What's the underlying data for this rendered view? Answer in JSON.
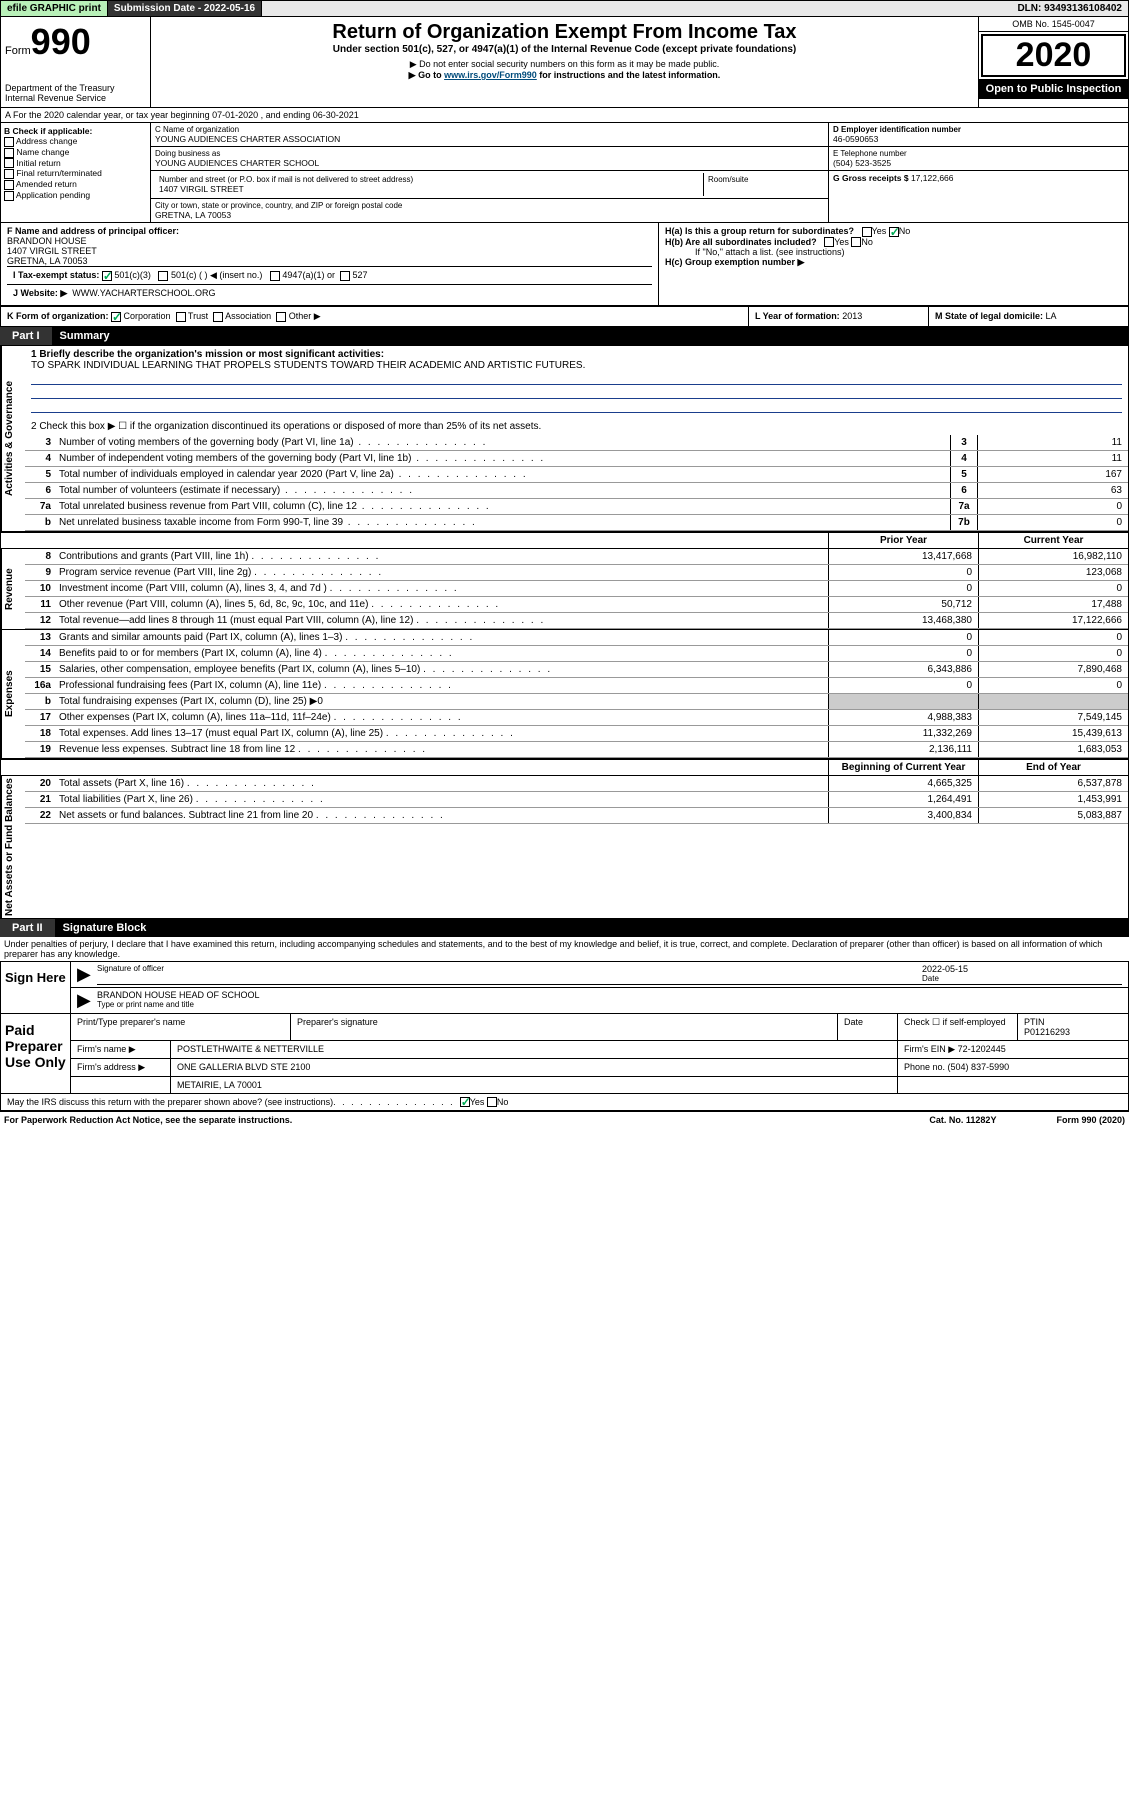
{
  "topbar": {
    "efile": "efile GRAPHIC print",
    "subdate_label": "Submission Date - ",
    "subdate": "2022-05-16",
    "dln_label": "DLN: ",
    "dln": "93493136108402"
  },
  "header": {
    "form_label": "Form",
    "form_num": "990",
    "dept": "Department of the Treasury\nInternal Revenue Service",
    "title": "Return of Organization Exempt From Income Tax",
    "subtitle": "Under section 501(c), 527, or 4947(a)(1) of the Internal Revenue Code (except private foundations)",
    "note1": "▶ Do not enter social security numbers on this form as it may be made public.",
    "note2_pre": "▶ Go to ",
    "note2_link": "www.irs.gov/Form990",
    "note2_post": " for instructions and the latest information.",
    "omb": "OMB No. 1545-0047",
    "year": "2020",
    "open": "Open to Public Inspection"
  },
  "row_a": {
    "text": "A For the 2020 calendar year, or tax year beginning 07-01-2020   , and ending 06-30-2021"
  },
  "col_b": {
    "label": "B Check if applicable:",
    "addr_change": "Address change",
    "name_change": "Name change",
    "initial": "Initial return",
    "final": "Final return/terminated",
    "amended": "Amended return",
    "app_pending": "Application pending"
  },
  "col_c": {
    "name_label": "C Name of organization",
    "name": "YOUNG AUDIENCES CHARTER ASSOCIATION",
    "dba_label": "Doing business as",
    "dba": "YOUNG AUDIENCES CHARTER SCHOOL",
    "addr_label": "Number and street (or P.O. box if mail is not delivered to street address)",
    "room_label": "Room/suite",
    "addr": "1407 VIRGIL STREET",
    "city_label": "City or town, state or province, country, and ZIP or foreign postal code",
    "city": "GRETNA, LA  70053"
  },
  "col_d": {
    "d_label": "D Employer identification number",
    "d_val": "46-0590653",
    "e_label": "E Telephone number",
    "e_val": "(504) 523-3525",
    "g_label": "G Gross receipts $ ",
    "g_val": "17,122,666"
  },
  "row_f": {
    "f_label": "F Name and address of principal officer:",
    "f_name": "BRANDON HOUSE",
    "f_addr": "1407 VIRGIL STREET",
    "f_city": "GRETNA, LA  70053",
    "ha_label": "H(a)  Is this a group return for subordinates?",
    "hb_label": "H(b)  Are all subordinates included?",
    "hb_note": "If \"No,\" attach a list. (see instructions)",
    "hc_label": "H(c)  Group exemption number ▶",
    "yes": "Yes",
    "no": "No"
  },
  "tax_exempt": {
    "i_label": "I  Tax-exempt status:",
    "opt1": "501(c)(3)",
    "opt2": "501(c) (   ) ◀ (insert no.)",
    "opt3": "4947(a)(1) or",
    "opt4": "527"
  },
  "website": {
    "j_label": "J  Website: ▶",
    "j_val": "WWW.YACHARTERSCHOOL.ORG"
  },
  "klm": {
    "k_label": "K Form of organization:",
    "k_corp": "Corporation",
    "k_trust": "Trust",
    "k_assoc": "Association",
    "k_other": "Other ▶",
    "l_label": "L Year of formation: ",
    "l_val": "2013",
    "m_label": "M State of legal domicile: ",
    "m_val": "LA"
  },
  "part1": {
    "label": "Part I",
    "title": "Summary"
  },
  "summary": {
    "q1_label": "1  Briefly describe the organization's mission or most significant activities:",
    "q1_val": "TO SPARK INDIVIDUAL LEARNING THAT PROPELS STUDENTS TOWARD THEIR ACADEMIC AND ARTISTIC FUTURES.",
    "q2": "2    Check this box ▶ ☐  if the organization discontinued its operations or disposed of more than 25% of its net assets.",
    "lines_gov": [
      {
        "n": "3",
        "d": "Number of voting members of the governing body (Part VI, line 1a)",
        "box": "3",
        "v": "11"
      },
      {
        "n": "4",
        "d": "Number of independent voting members of the governing body (Part VI, line 1b)",
        "box": "4",
        "v": "11"
      },
      {
        "n": "5",
        "d": "Total number of individuals employed in calendar year 2020 (Part V, line 2a)",
        "box": "5",
        "v": "167"
      },
      {
        "n": "6",
        "d": "Total number of volunteers (estimate if necessary)",
        "box": "6",
        "v": "63"
      },
      {
        "n": "7a",
        "d": "Total unrelated business revenue from Part VIII, column (C), line 12",
        "box": "7a",
        "v": "0"
      },
      {
        "n": "b",
        "d": "Net unrelated business taxable income from Form 990-T, line 39",
        "box": "7b",
        "v": "0"
      }
    ],
    "col_headers": {
      "prior": "Prior Year",
      "current": "Current Year"
    },
    "revenue": [
      {
        "n": "8",
        "d": "Contributions and grants (Part VIII, line 1h)",
        "p": "13,417,668",
        "c": "16,982,110"
      },
      {
        "n": "9",
        "d": "Program service revenue (Part VIII, line 2g)",
        "p": "0",
        "c": "123,068"
      },
      {
        "n": "10",
        "d": "Investment income (Part VIII, column (A), lines 3, 4, and 7d )",
        "p": "0",
        "c": "0"
      },
      {
        "n": "11",
        "d": "Other revenue (Part VIII, column (A), lines 5, 6d, 8c, 9c, 10c, and 11e)",
        "p": "50,712",
        "c": "17,488"
      },
      {
        "n": "12",
        "d": "Total revenue—add lines 8 through 11 (must equal Part VIII, column (A), line 12)",
        "p": "13,468,380",
        "c": "17,122,666"
      }
    ],
    "expenses": [
      {
        "n": "13",
        "d": "Grants and similar amounts paid (Part IX, column (A), lines 1–3)",
        "p": "0",
        "c": "0"
      },
      {
        "n": "14",
        "d": "Benefits paid to or for members (Part IX, column (A), line 4)",
        "p": "0",
        "c": "0"
      },
      {
        "n": "15",
        "d": "Salaries, other compensation, employee benefits (Part IX, column (A), lines 5–10)",
        "p": "6,343,886",
        "c": "7,890,468"
      },
      {
        "n": "16a",
        "d": "Professional fundraising fees (Part IX, column (A), line 11e)",
        "p": "0",
        "c": "0"
      },
      {
        "n": "b",
        "d": "Total fundraising expenses (Part IX, column (D), line 25) ▶0",
        "p": "",
        "c": "",
        "shaded": true
      },
      {
        "n": "17",
        "d": "Other expenses (Part IX, column (A), lines 11a–11d, 11f–24e)",
        "p": "4,988,383",
        "c": "7,549,145"
      },
      {
        "n": "18",
        "d": "Total expenses. Add lines 13–17 (must equal Part IX, column (A), line 25)",
        "p": "11,332,269",
        "c": "15,439,613"
      },
      {
        "n": "19",
        "d": "Revenue less expenses. Subtract line 18 from line 12",
        "p": "2,136,111",
        "c": "1,683,053"
      }
    ],
    "net_headers": {
      "begin": "Beginning of Current Year",
      "end": "End of Year"
    },
    "net": [
      {
        "n": "20",
        "d": "Total assets (Part X, line 16)",
        "p": "4,665,325",
        "c": "6,537,878"
      },
      {
        "n": "21",
        "d": "Total liabilities (Part X, line 26)",
        "p": "1,264,491",
        "c": "1,453,991"
      },
      {
        "n": "22",
        "d": "Net assets or fund balances. Subtract line 21 from line 20",
        "p": "3,400,834",
        "c": "5,083,887"
      }
    ],
    "tab_gov": "Activities & Governance",
    "tab_rev": "Revenue",
    "tab_exp": "Expenses",
    "tab_net": "Net Assets or Fund Balances"
  },
  "part2": {
    "label": "Part II",
    "title": "Signature Block",
    "penalty": "Under penalties of perjury, I declare that I have examined this return, including accompanying schedules and statements, and to the best of my knowledge and belief, it is true, correct, and complete. Declaration of preparer (other than officer) is based on all information of which preparer has any knowledge."
  },
  "sign": {
    "sign_here": "Sign Here",
    "sig_officer": "Signature of officer",
    "date_label": "Date",
    "date": "2022-05-15",
    "name": "BRANDON HOUSE  HEAD OF SCHOOL",
    "name_label": "Type or print name and title"
  },
  "preparer": {
    "label": "Paid Preparer Use Only",
    "h_name": "Print/Type preparer's name",
    "h_sig": "Preparer's signature",
    "h_date": "Date",
    "h_check": "Check ☐ if self-employed",
    "h_ptin": "PTIN",
    "ptin": "P01216293",
    "firm_name_label": "Firm's name    ▶",
    "firm_name": "POSTLETHWAITE & NETTERVILLE",
    "firm_ein_label": "Firm's EIN ▶",
    "firm_ein": "72-1202445",
    "firm_addr_label": "Firm's address ▶",
    "firm_addr": "ONE GALLERIA BLVD STE 2100",
    "firm_city": "METAIRIE, LA  70001",
    "phone_label": "Phone no. ",
    "phone": "(504) 837-5990",
    "discuss": "May the IRS discuss this return with the preparer shown above? (see instructions)"
  },
  "footer": {
    "left": "For Paperwork Reduction Act Notice, see the separate instructions.",
    "mid": "Cat. No. 11282Y",
    "right": "Form 990 (2020)"
  }
}
